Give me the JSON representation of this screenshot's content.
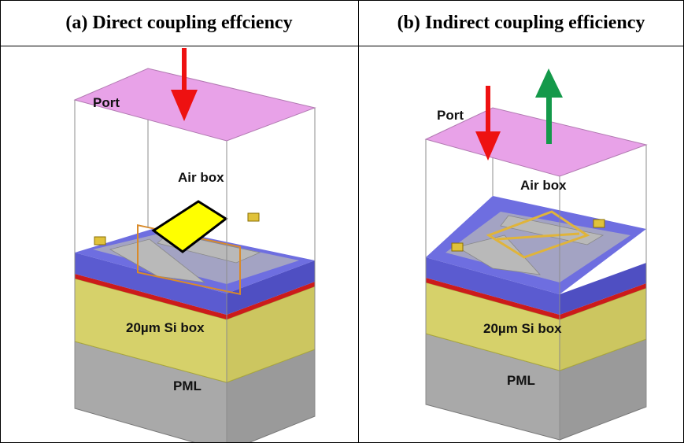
{
  "header_a": "(a) Direct coupling effciency",
  "header_b": "(b) Indirect coupling efficiency",
  "panel_a": {
    "port": "Port",
    "air": "Air box",
    "si": "20µm Si box",
    "pml": "PML"
  },
  "panel_b": {
    "port": "Port",
    "air": "Air box",
    "si": "20µm Si box",
    "pml": "PML"
  },
  "colors": {
    "port": "#e8a2e8",
    "box_blue": "#5b5bd0",
    "si_yellow": "#d6d16a",
    "pml_gray": "#a9a9a9",
    "red_line": "#cc1b1b",
    "arrow_red": "#ee1111",
    "arrow_green": "#14994a",
    "chip_yellow": "#ffff00"
  }
}
